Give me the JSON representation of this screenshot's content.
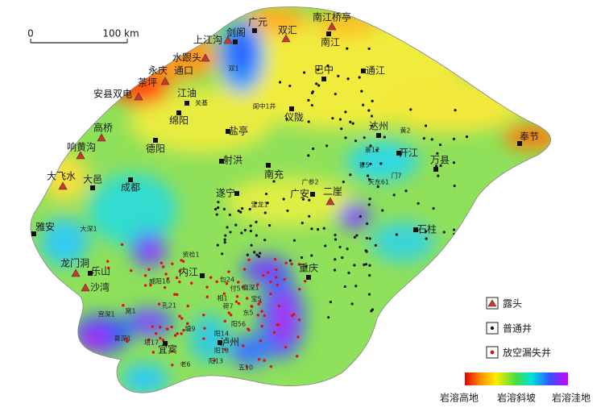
{
  "scale_bar": {
    "start_label": "0",
    "end_label": "100 km"
  },
  "outcrops": [
    "南江桥亭",
    "双汇",
    "上江沟",
    "水跟头",
    "茶坪",
    "安县双电",
    "高桥",
    "响黄沟",
    "大飞水",
    "龙门洞",
    "沙湾",
    "二崖"
  ],
  "places": [
    "永庆",
    "通口"
  ],
  "cities": [
    "广元",
    "剑阁",
    "南江",
    "巴中",
    "通江",
    "江油",
    "绵阳",
    "盐亭",
    "仪陇",
    "达州",
    "开江",
    "万县",
    "奉节",
    "德阳",
    "射洪",
    "南充",
    "成都",
    "大邑",
    "遂宁",
    "广安",
    "石柱",
    "雅安",
    "乐山",
    "内江",
    "重庆",
    "宜宾",
    "泸州"
  ],
  "wells": [
    "双1",
    "关基",
    "阆中1井",
    "黄2",
    "景12",
    "景5",
    "门7",
    "天东61",
    "广参2",
    "宝龙1",
    "大深1",
    "资检1",
    "威阳16",
    "包24",
    "磨深1",
    "孔21",
    "窝1",
    "宫深1",
    "喜深1",
    "塔17",
    "塘9",
    "荷7",
    "相1",
    "付5",
    "阳18",
    "阳13",
    "阳14",
    "阳56",
    "五10",
    "老6",
    "东5",
    "宝5"
  ],
  "legend": {
    "outcrop": "露头",
    "normal_well": "普通井",
    "loss_well": "放空漏失井"
  },
  "color_bar": {
    "labels": [
      "岩溶高地",
      "岩溶斜坡",
      "岩溶洼地"
    ]
  }
}
